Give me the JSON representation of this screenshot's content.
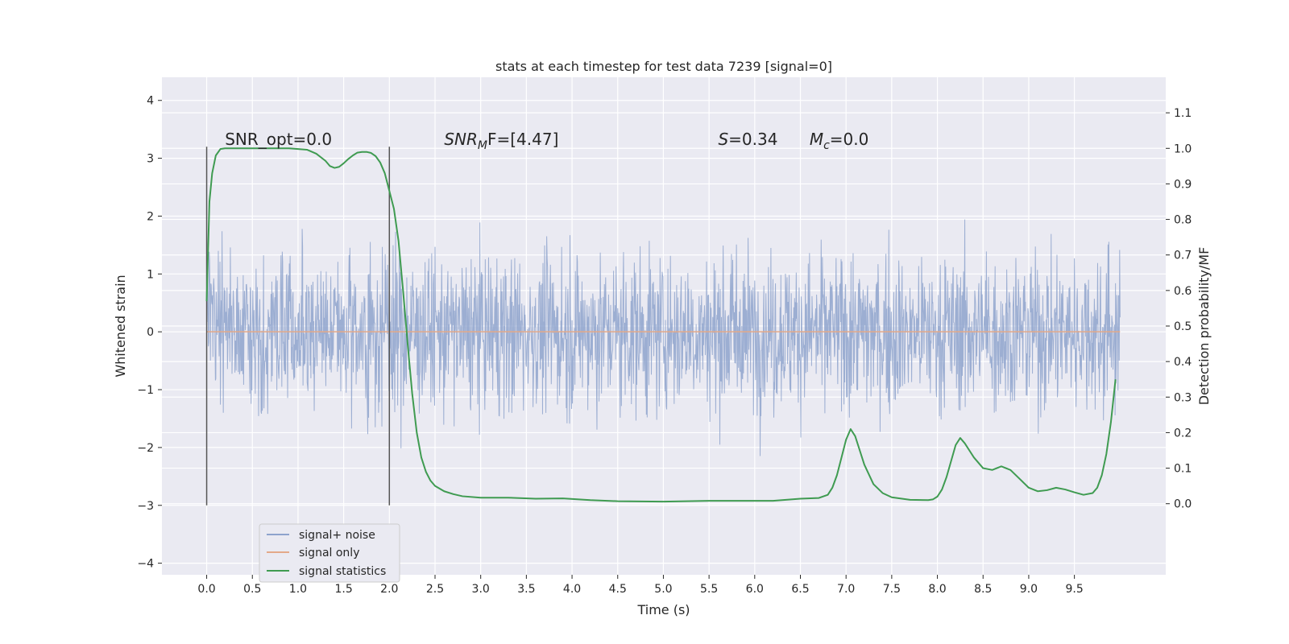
{
  "chart_data": {
    "type": "line",
    "title": "stats at each timestep for test data 7239 [signal=0]",
    "xlabel": "Time (s)",
    "ylabel": "Whitened strain",
    "y2label": "Detection probability/MF",
    "xlim": [
      -0.49,
      10.5
    ],
    "ylim": [
      -4.2,
      4.4
    ],
    "y2lim": [
      -0.2,
      1.2
    ],
    "xticks": [
      0.0,
      0.5,
      1.0,
      1.5,
      2.0,
      2.5,
      3.0,
      3.5,
      4.0,
      4.5,
      5.0,
      5.5,
      6.0,
      6.5,
      7.0,
      7.5,
      8.0,
      8.5,
      9.0,
      9.5
    ],
    "xtick_labels": [
      "0.0",
      "0.5",
      "1.0",
      "1.5",
      "2.0",
      "2.5",
      "3.0",
      "3.5",
      "4.0",
      "4.5",
      "5.0",
      "5.5",
      "6.0",
      "6.5",
      "7.0",
      "7.5",
      "8.0",
      "8.5",
      "9.0",
      "9.5"
    ],
    "yticks": [
      -4,
      -3,
      -2,
      -1,
      0,
      1,
      2,
      3,
      4
    ],
    "ytick_labels": [
      "−4",
      "−3",
      "−2",
      "−1",
      "0",
      "1",
      "2",
      "3",
      "4"
    ],
    "y2ticks": [
      0.0,
      0.1,
      0.2,
      0.3,
      0.4,
      0.5,
      0.6,
      0.7,
      0.8,
      0.9,
      1.0,
      1.1
    ],
    "y2tick_labels": [
      "0.0",
      "0.1",
      "0.2",
      "0.3",
      "0.4",
      "0.5",
      "0.6",
      "0.7",
      "0.8",
      "0.9",
      "1.0",
      "1.1"
    ],
    "grid": true,
    "legend_position": "bottom-left",
    "series": [
      {
        "name": "signal+ noise",
        "color": "#8ea3cd",
        "axis": "left",
        "style": "noise",
        "t_range": [
          0.0,
          10.0
        ],
        "typical_amplitude": 1.33,
        "peak_amplitude": 4.05
      },
      {
        "name": "signal only",
        "color": "#e3a989",
        "axis": "left",
        "x": [
          0.0,
          10.0
        ],
        "y": [
          0.0,
          0.0
        ]
      },
      {
        "name": "signal statistics",
        "color": "#3f9b51",
        "axis": "right",
        "x": [
          0.0,
          0.03,
          0.06,
          0.1,
          0.15,
          0.2,
          0.3,
          0.5,
          0.7,
          0.9,
          1.1,
          1.2,
          1.3,
          1.35,
          1.4,
          1.45,
          1.5,
          1.55,
          1.6,
          1.65,
          1.7,
          1.75,
          1.8,
          1.85,
          1.9,
          1.95,
          2.0,
          2.05,
          2.1,
          2.15,
          2.2,
          2.25,
          2.3,
          2.35,
          2.4,
          2.45,
          2.5,
          2.6,
          2.7,
          2.8,
          3.0,
          3.3,
          3.6,
          3.9,
          4.2,
          4.5,
          5.0,
          5.5,
          6.0,
          6.2,
          6.5,
          6.7,
          6.8,
          6.85,
          6.9,
          6.95,
          7.0,
          7.05,
          7.1,
          7.15,
          7.2,
          7.3,
          7.4,
          7.5,
          7.7,
          7.9,
          7.95,
          8.0,
          8.05,
          8.1,
          8.15,
          8.2,
          8.25,
          8.3,
          8.35,
          8.4,
          8.5,
          8.6,
          8.7,
          8.8,
          8.9,
          9.0,
          9.1,
          9.2,
          9.3,
          9.4,
          9.5,
          9.6,
          9.7,
          9.75,
          9.8,
          9.85,
          9.9,
          9.95
        ],
        "y": [
          0.57,
          0.85,
          0.93,
          0.98,
          0.998,
          1.0,
          1.0,
          1.0,
          1.0,
          1.0,
          0.996,
          0.985,
          0.965,
          0.95,
          0.945,
          0.948,
          0.958,
          0.97,
          0.98,
          0.988,
          0.99,
          0.99,
          0.987,
          0.978,
          0.96,
          0.93,
          0.88,
          0.83,
          0.74,
          0.6,
          0.45,
          0.31,
          0.2,
          0.13,
          0.09,
          0.065,
          0.05,
          0.035,
          0.027,
          0.021,
          0.017,
          0.017,
          0.014,
          0.015,
          0.01,
          0.007,
          0.006,
          0.008,
          0.008,
          0.008,
          0.014,
          0.016,
          0.025,
          0.045,
          0.08,
          0.13,
          0.18,
          0.21,
          0.19,
          0.15,
          0.11,
          0.055,
          0.03,
          0.018,
          0.011,
          0.01,
          0.012,
          0.02,
          0.04,
          0.075,
          0.12,
          0.165,
          0.185,
          0.17,
          0.15,
          0.13,
          0.1,
          0.095,
          0.105,
          0.095,
          0.07,
          0.045,
          0.035,
          0.038,
          0.045,
          0.04,
          0.032,
          0.025,
          0.03,
          0.045,
          0.08,
          0.14,
          0.23,
          0.35
        ]
      }
    ],
    "vlines": [
      {
        "x": 0.0,
        "ymin": -3.0,
        "ymax": 3.2,
        "color": "#555555"
      },
      {
        "x": 2.0,
        "ymin": -3.0,
        "ymax": 3.2,
        "color": "#555555"
      }
    ],
    "annotations": [
      {
        "prefix": "SNR_opt=0.0",
        "sub": "",
        "suffix": "",
        "x": 0.2,
        "y": 3.2
      },
      {
        "prefix": "SNR",
        "sub": "M",
        "suffix": "F=[4.47]",
        "x": 2.6,
        "y": 3.2
      },
      {
        "prefix": "S",
        "sub": "",
        "suffix": "=0.34",
        "x": 5.6,
        "y": 3.2
      },
      {
        "prefix": "M",
        "sub": "c",
        "suffix": "=0.0",
        "x": 6.6,
        "y": 3.2
      }
    ]
  }
}
